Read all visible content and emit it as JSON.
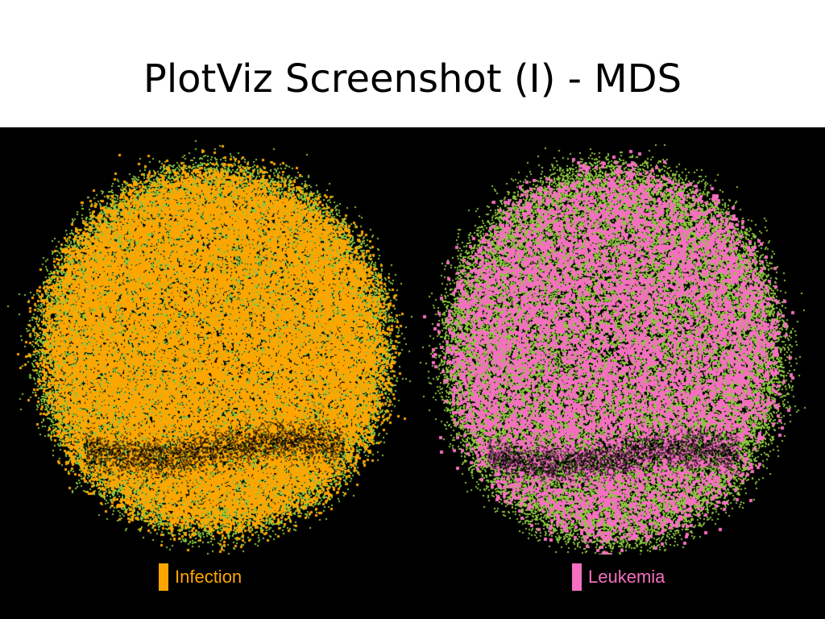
{
  "slide": {
    "title": "PlotViz Screenshot (I) - MDS"
  },
  "colors": {
    "background": "#000000",
    "base_points": "#8cc63f",
    "infection": "#ffa500",
    "leukemia": "#f56fc0"
  },
  "panels": [
    {
      "id": "left",
      "legend_label": "Infection",
      "highlight_color": "#ffa500",
      "highlight_density": 0.62
    },
    {
      "id": "right",
      "legend_label": "Leukemia",
      "highlight_color": "#f56fc0",
      "highlight_density": 0.18
    }
  ]
}
